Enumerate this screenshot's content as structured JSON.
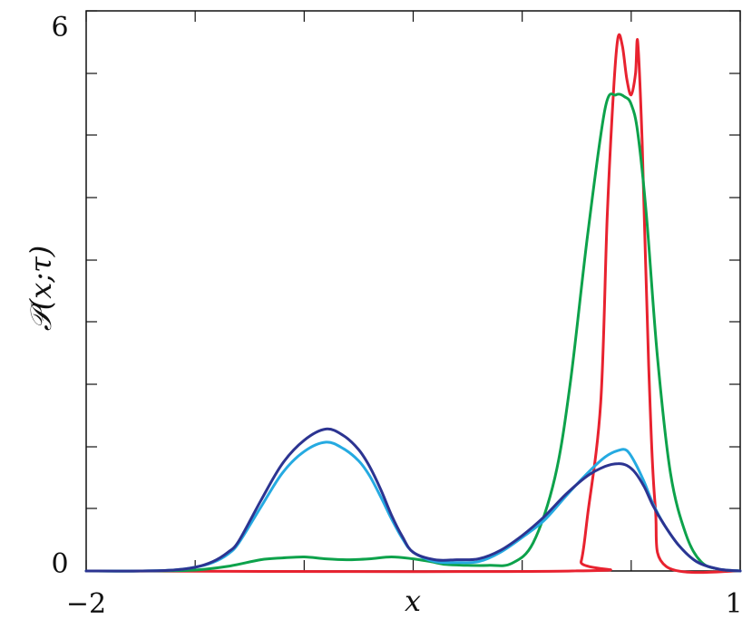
{
  "chart_data": {
    "type": "line",
    "title": "",
    "xlabel": "x",
    "ylabel": "𝒫(x;τ)",
    "xlim": [
      -2,
      1
    ],
    "ylim": [
      0,
      6
    ],
    "x_tick_labels": [
      "−2",
      "1"
    ],
    "y_tick_labels": [
      "0",
      "6"
    ],
    "x_ticks": [
      -2,
      -1.5,
      -1,
      -0.5,
      0,
      0.5,
      1
    ],
    "y_ticks": [
      0,
      0.67,
      1.33,
      2,
      2.67,
      3.33,
      4,
      4.67,
      5.33,
      6
    ],
    "grid": false,
    "legend": "none",
    "series": [
      {
        "color": "#e8222f",
        "x": [
          -2,
          0.23,
          0.27,
          0.3,
          0.36,
          0.39,
          0.42,
          0.44,
          0.46,
          0.48,
          0.5,
          0.52,
          0.53,
          0.55,
          0.58,
          0.61,
          0.66,
          1
        ],
        "y": [
          0,
          0,
          0.1,
          0.6,
          1.8,
          3.8,
          5.18,
          5.72,
          5.62,
          5.27,
          5.1,
          5.33,
          5.67,
          4.6,
          2.2,
          0.7,
          0.05,
          0
        ]
      },
      {
        "color": "#0da24b",
        "x": [
          -2,
          -1.7,
          -1.5,
          -1.35,
          -1.2,
          -1.1,
          -1.0,
          -0.9,
          -0.8,
          -0.7,
          -0.6,
          -0.5,
          -0.42,
          -0.35,
          -0.25,
          -0.15,
          -0.05,
          0.05,
          0.15,
          0.22,
          0.3,
          0.38,
          0.43,
          0.47,
          0.5,
          0.53,
          0.57,
          0.62,
          0.68,
          0.75,
          0.82,
          0.9,
          1
        ],
        "y": [
          0,
          0,
          0.01,
          0.05,
          0.12,
          0.14,
          0.15,
          0.13,
          0.12,
          0.13,
          0.15,
          0.13,
          0.1,
          0.07,
          0.06,
          0.06,
          0.08,
          0.3,
          1.0,
          2.0,
          3.6,
          4.95,
          5.1,
          5.08,
          5.0,
          4.7,
          3.8,
          2.3,
          1.05,
          0.4,
          0.1,
          0.02,
          0
        ]
      },
      {
        "color": "#25aae1",
        "x": [
          -2,
          -1.75,
          -1.6,
          -1.5,
          -1.42,
          -1.35,
          -1.3,
          -1.2,
          -1.1,
          -1.0,
          -0.9,
          -0.82,
          -0.75,
          -0.7,
          -0.65,
          -0.6,
          -0.55,
          -0.5,
          -0.4,
          -0.3,
          -0.2,
          -0.1,
          0.0,
          0.1,
          0.2,
          0.3,
          0.38,
          0.44,
          0.48,
          0.52,
          0.56,
          0.6,
          0.65,
          0.72,
          0.8,
          0.9,
          1
        ],
        "y": [
          0,
          0,
          0.01,
          0.04,
          0.09,
          0.18,
          0.3,
          0.68,
          1.05,
          1.28,
          1.38,
          1.31,
          1.18,
          1.02,
          0.8,
          0.56,
          0.35,
          0.2,
          0.1,
          0.09,
          0.1,
          0.2,
          0.36,
          0.54,
          0.8,
          1.05,
          1.22,
          1.29,
          1.29,
          1.15,
          0.95,
          0.72,
          0.5,
          0.27,
          0.1,
          0.02,
          0
        ]
      },
      {
        "color": "#2c3491",
        "x": [
          -2,
          -1.75,
          -1.6,
          -1.5,
          -1.42,
          -1.35,
          -1.3,
          -1.2,
          -1.1,
          -1.0,
          -0.9,
          -0.82,
          -0.75,
          -0.7,
          -0.65,
          -0.6,
          -0.55,
          -0.5,
          -0.4,
          -0.3,
          -0.2,
          -0.1,
          0.0,
          0.1,
          0.2,
          0.3,
          0.38,
          0.44,
          0.48,
          0.52,
          0.56,
          0.6,
          0.65,
          0.72,
          0.8,
          0.9,
          1
        ],
        "y": [
          0,
          0,
          0.01,
          0.04,
          0.1,
          0.2,
          0.32,
          0.75,
          1.15,
          1.4,
          1.52,
          1.45,
          1.3,
          1.12,
          0.88,
          0.6,
          0.37,
          0.2,
          0.12,
          0.12,
          0.13,
          0.22,
          0.38,
          0.58,
          0.82,
          1.02,
          1.12,
          1.15,
          1.13,
          1.05,
          0.9,
          0.7,
          0.5,
          0.27,
          0.1,
          0.02,
          0
        ]
      }
    ]
  }
}
